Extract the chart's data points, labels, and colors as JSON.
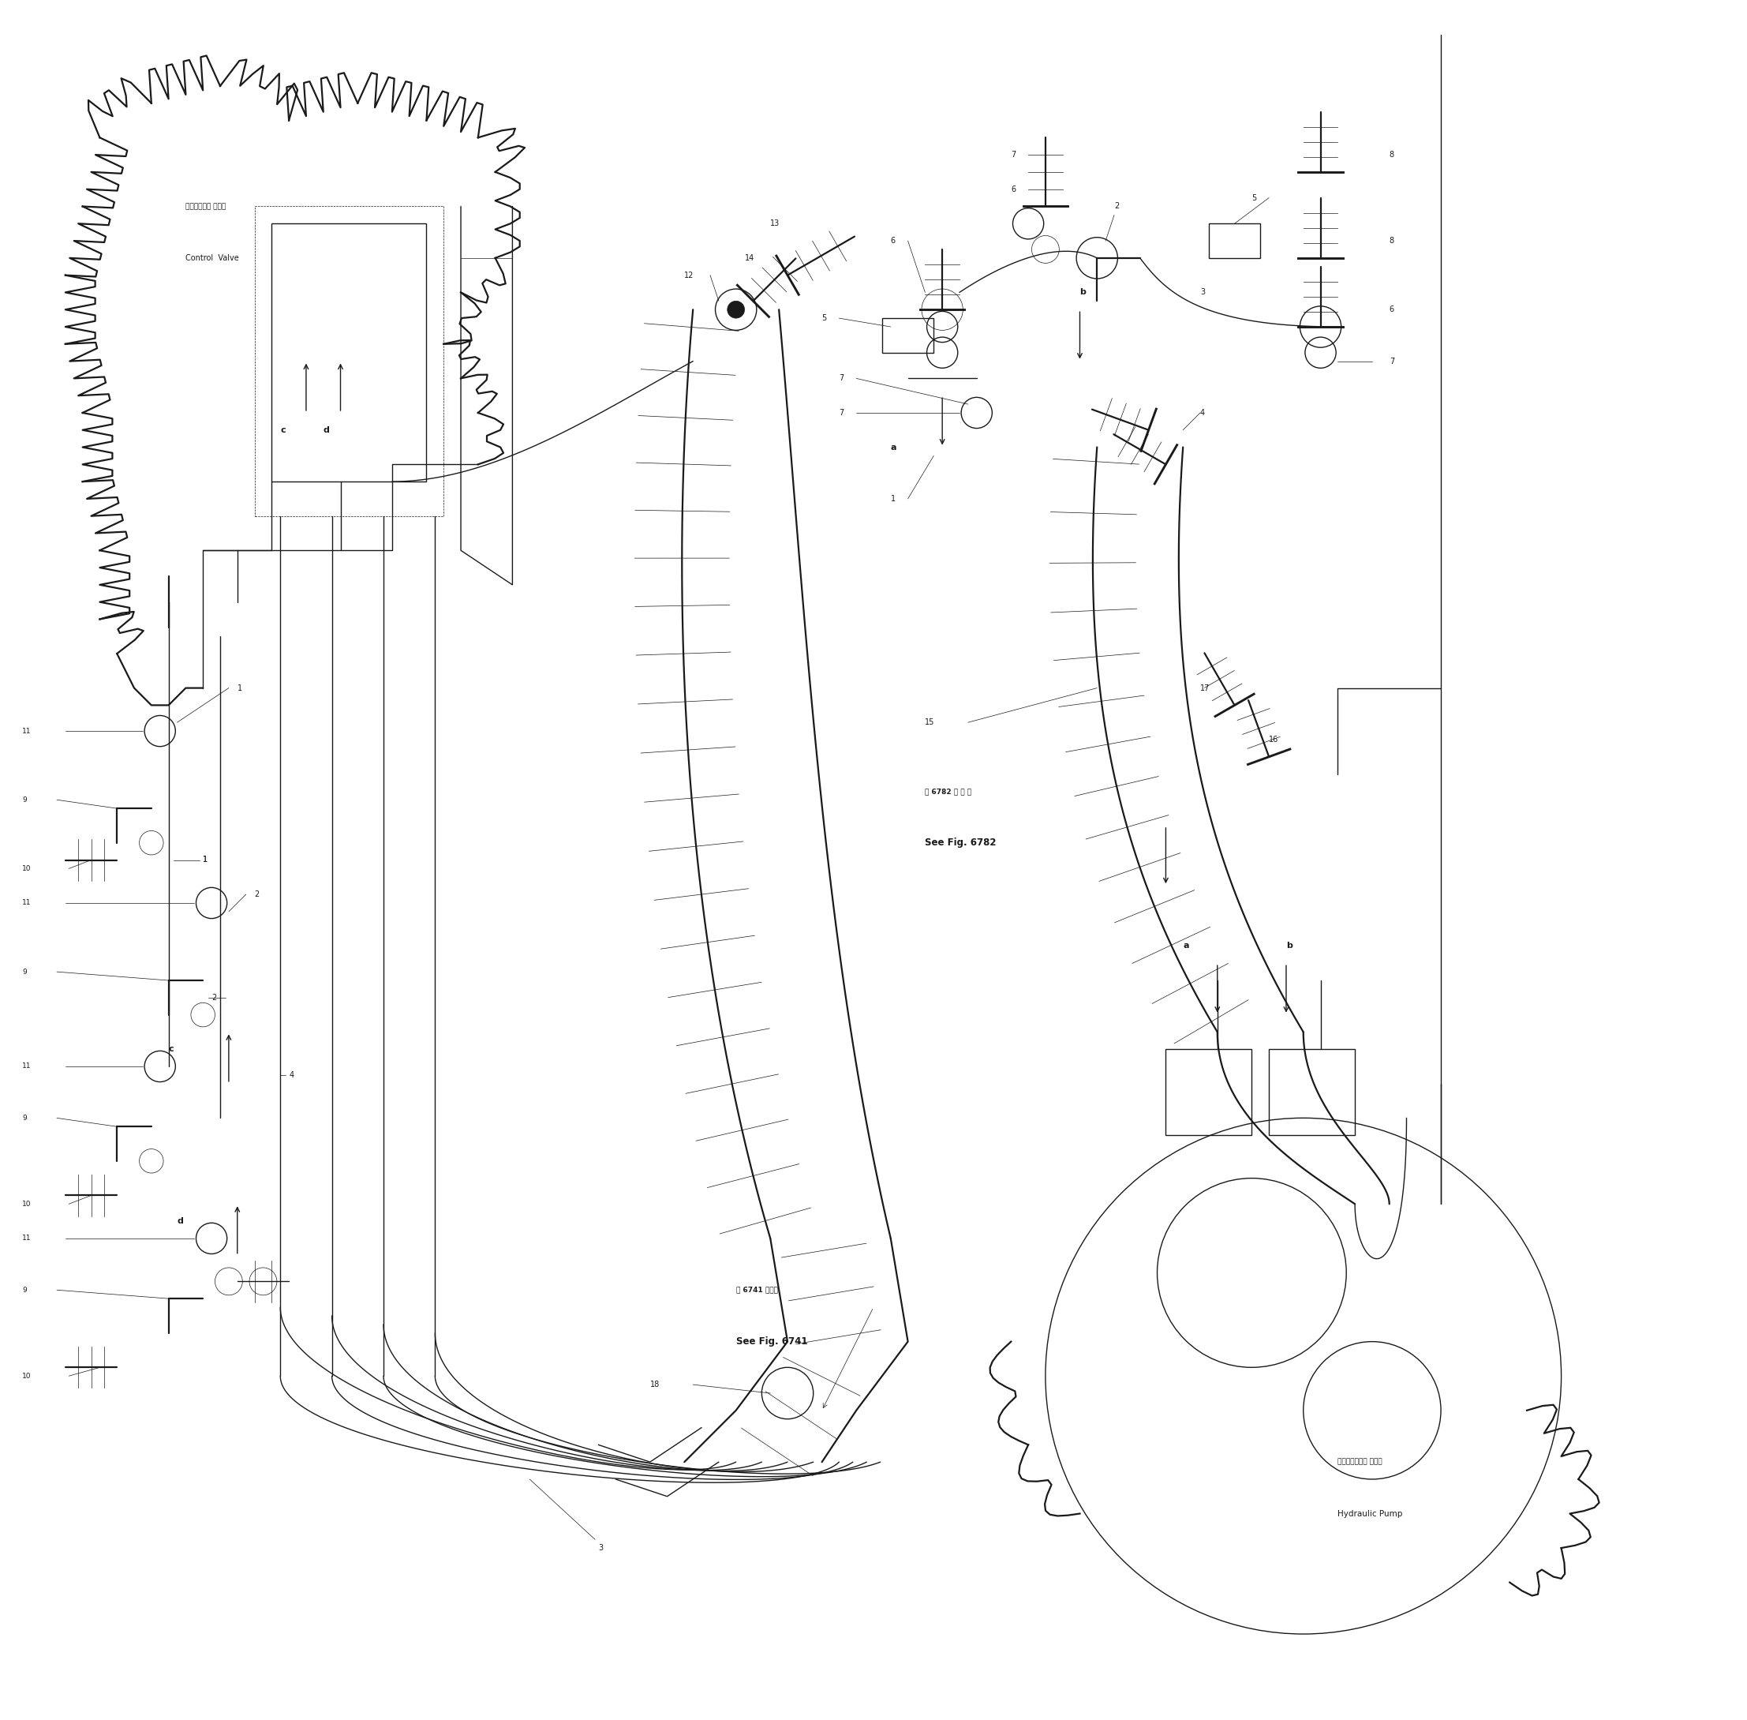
{
  "bg_color": "#ffffff",
  "line_color": "#1a1a1a",
  "fig_width": 22.14,
  "fig_height": 21.79,
  "labels": {
    "control_valve_jp": "コントロール バルブ",
    "control_valve_en": "Control  Valve",
    "hydraulic_pump_jp": "ハイドロリック ポンプ",
    "hydraulic_pump_en": "Hydraulic Pump",
    "see_fig_6782_jp": "第 6782 図 参 照",
    "see_fig_6782_en": "See Fig. 6782",
    "see_fig_6741_jp": "第 6741 図参照",
    "see_fig_6741_en": "See Fig. 6741"
  }
}
